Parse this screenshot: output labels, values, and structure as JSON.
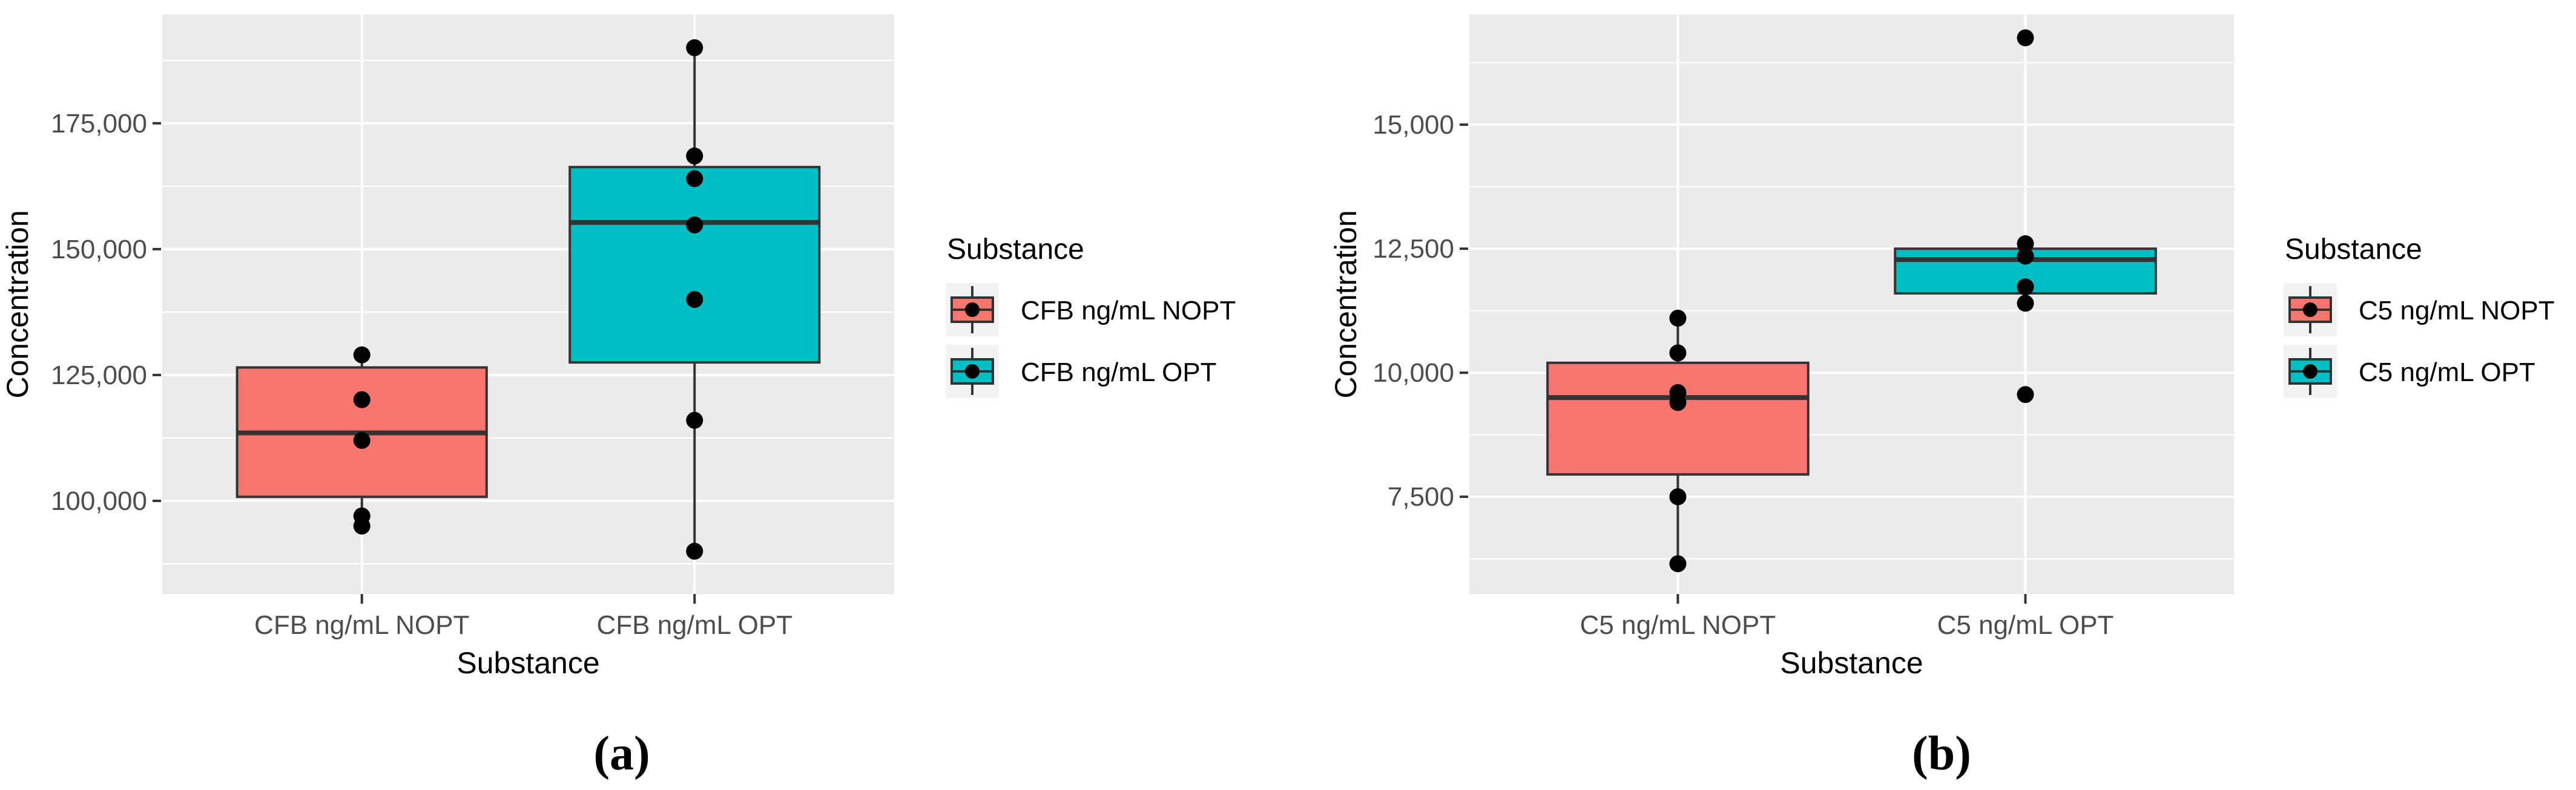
{
  "figure": {
    "captions": {
      "a": "(a)",
      "b": "(b)"
    },
    "colors": {
      "nopt_fill": "#F8766D",
      "opt_fill": "#00BFC4",
      "panel_background": "#EBEBEB",
      "gridline": "#FFFFFF",
      "box_border": "#333333",
      "median_line": "#333333",
      "point": "#000000",
      "tick_label": "#4D4D4D",
      "axis_title": "#000000",
      "legend_key_background": "#F2F2F2",
      "legend_text": "#000000"
    }
  },
  "chart_data": [
    {
      "type": "boxplot",
      "caption": "(a)",
      "x_axis_title": "Substance",
      "y_axis_title": "Concentration",
      "legend_title": "Substance",
      "y_range": [
        81500,
        196600
      ],
      "grid": true,
      "legend_position": "right",
      "y_ticks": [
        {
          "value": 100000,
          "label": "100,000"
        },
        {
          "value": 125000,
          "label": "125,000"
        },
        {
          "value": 150000,
          "label": "150,000"
        },
        {
          "value": 175000,
          "label": "175,000"
        }
      ],
      "categories": [
        "CFB ng/mL NOPT",
        "CFB ng/mL OPT"
      ],
      "series": [
        {
          "name": "CFB ng/mL NOPT",
          "color": "#F8766D",
          "whisker_low": 95000,
          "q1": 100800,
          "median": 113500,
          "q3": 126500,
          "whisker_high": 129000,
          "points": [
            129000,
            120100,
            112000,
            97000,
            95000
          ]
        },
        {
          "name": "CFB ng/mL OPT",
          "color": "#00BFC4",
          "whisker_low": 90000,
          "q1": 127500,
          "median": 155300,
          "q3": 166300,
          "whisker_high": 190000,
          "points": [
            190000,
            168500,
            164000,
            154800,
            140000,
            116000,
            90000
          ]
        }
      ]
    },
    {
      "type": "boxplot",
      "caption": "(b)",
      "x_axis_title": "Substance",
      "y_axis_title": "Concentration",
      "legend_title": "Substance",
      "y_range": [
        5540,
        17220
      ],
      "grid": true,
      "legend_position": "right",
      "y_ticks": [
        {
          "value": 7500,
          "label": "7,500"
        },
        {
          "value": 10000,
          "label": "10,000"
        },
        {
          "value": 12500,
          "label": "12,500"
        },
        {
          "value": 15000,
          "label": "15,000"
        }
      ],
      "categories": [
        "C5 ng/mL NOPT",
        "C5 ng/mL OPT"
      ],
      "series": [
        {
          "name": "C5 ng/mL NOPT",
          "color": "#F8766D",
          "whisker_low": 6150,
          "q1": 7950,
          "median": 9500,
          "q3": 10200,
          "whisker_high": 11100,
          "points": [
            11100,
            10400,
            9600,
            9400,
            7500,
            6150
          ]
        },
        {
          "name": "C5 ng/mL OPT",
          "color": "#00BFC4",
          "whisker_low": 11400,
          "q1": 11600,
          "median": 12280,
          "q3": 12500,
          "whisker_high": 12600,
          "points": [
            16750,
            12600,
            12350,
            11730,
            11400,
            9560
          ]
        }
      ]
    }
  ]
}
